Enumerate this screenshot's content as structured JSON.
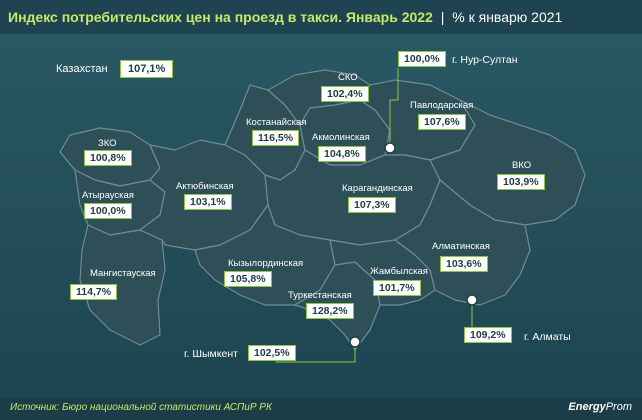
{
  "header": {
    "title": "Индекс потребительских цен на проезд в такси. Январь 2022",
    "separator": "|",
    "unit": "% к январю 2021"
  },
  "kazakhstan": {
    "label": "Казахстан",
    "value": "107,1%"
  },
  "regions": [
    {
      "id": "zko",
      "label": "ЗКО",
      "value": "100,8%"
    },
    {
      "id": "atyrau",
      "label": "Атырауская",
      "value": "100,0%"
    },
    {
      "id": "mangistau",
      "label": "Мангистауская",
      "value": "114,7%"
    },
    {
      "id": "aktobe",
      "label": "Актюбинская",
      "value": "103,1%"
    },
    {
      "id": "kostanay",
      "label": "Костанайская",
      "value": "116,5%"
    },
    {
      "id": "sko",
      "label": "СКО",
      "value": "102,4%"
    },
    {
      "id": "akmola",
      "label": "Акмолинская",
      "value": "104,8%"
    },
    {
      "id": "pavlodar",
      "label": "Павлодарская",
      "value": "107,6%"
    },
    {
      "id": "karaganda",
      "label": "Карагандинская",
      "value": "107,3%"
    },
    {
      "id": "vko",
      "label": "ВКО",
      "value": "103,9%"
    },
    {
      "id": "kyzylorda",
      "label": "Кызылординская",
      "value": "105,8%"
    },
    {
      "id": "zhambyl",
      "label": "Жамбылская",
      "value": "101,7%"
    },
    {
      "id": "turkestan",
      "label": "Туркестанская",
      "value": "128,2%"
    },
    {
      "id": "almaty_obl",
      "label": "Алматинская",
      "value": "103,6%"
    }
  ],
  "cities": [
    {
      "id": "nur_sultan",
      "label": "г. Нур-Султан",
      "value": "100,0%"
    },
    {
      "id": "shymkent",
      "label": "г. Шымкент",
      "value": "102,5%"
    },
    {
      "id": "almaty",
      "label": "г. Алматы",
      "value": "109,2%"
    }
  ],
  "footer": {
    "source": "Источник: Бюро национальной статистики АСПиР РК",
    "logo_brand": "Energy",
    "logo_suffix": "Prom"
  },
  "colors": {
    "land": "#2e4f57",
    "border": "#6f8c94",
    "accent": "#8dc63f",
    "title": "#c7e86a"
  }
}
